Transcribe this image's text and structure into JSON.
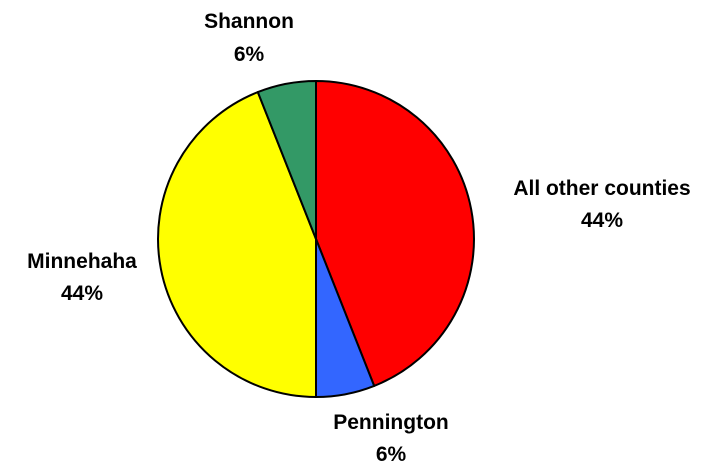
{
  "chart_data": {
    "type": "pie",
    "start_angle_deg": 0,
    "direction": "clockwise",
    "slices": [
      {
        "name": "All other counties",
        "value": 44,
        "value_label": "44%",
        "color": "#ff0000"
      },
      {
        "name": "Pennington",
        "value": 6,
        "value_label": "6%",
        "color": "#3366ff"
      },
      {
        "name": "Minnehaha",
        "value": 44,
        "value_label": "44%",
        "color": "#ffff00"
      },
      {
        "name": "Shannon",
        "value": 6,
        "value_label": "6%",
        "color": "#339966"
      }
    ]
  }
}
